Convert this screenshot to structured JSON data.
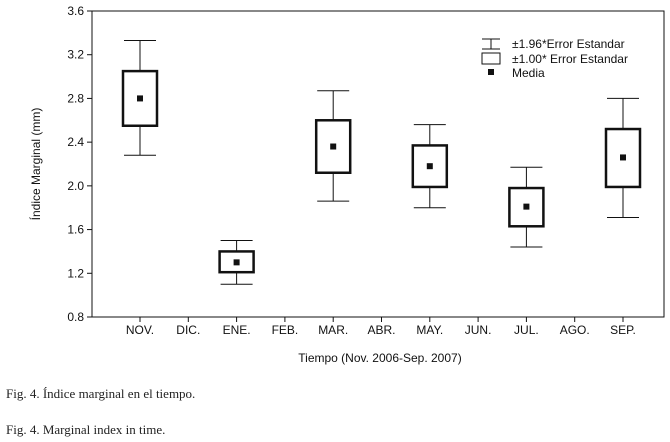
{
  "chart_data": {
    "type": "box",
    "xlabel": "Tiempo (Nov. 2006-Sep. 2007)",
    "ylabel": "Índice Marginal (mm)",
    "ylim": [
      0.8,
      3.6
    ],
    "yticks": [
      "0.8",
      "1.2",
      "1.6",
      "2.0",
      "2.4",
      "2.8",
      "3.2",
      "3.6"
    ],
    "categories": [
      "NOV.",
      "DIC.",
      "ENE.",
      "FEB.",
      "MAR.",
      "ABR.",
      "MAY.",
      "JUN.",
      "JUL.",
      "AGO.",
      "SEP."
    ],
    "legend": {
      "position": "top-right",
      "whisker_label": "±1.96*Error Estandar",
      "box_label": "±1.00* Error Estandar",
      "mean_label": "Media"
    },
    "series": [
      {
        "category": "NOV.",
        "mean": 2.8,
        "box_low": 2.55,
        "box_high": 3.05,
        "whisker_low": 2.28,
        "whisker_high": 3.33
      },
      {
        "category": "ENE.",
        "mean": 1.3,
        "box_low": 1.21,
        "box_high": 1.4,
        "whisker_low": 1.1,
        "whisker_high": 1.5
      },
      {
        "category": "MAR.",
        "mean": 2.36,
        "box_low": 2.12,
        "box_high": 2.6,
        "whisker_low": 1.86,
        "whisker_high": 2.87
      },
      {
        "category": "MAY.",
        "mean": 2.18,
        "box_low": 1.99,
        "box_high": 2.37,
        "whisker_low": 1.8,
        "whisker_high": 2.56
      },
      {
        "category": "JUL.",
        "mean": 1.81,
        "box_low": 1.63,
        "box_high": 1.98,
        "whisker_low": 1.44,
        "whisker_high": 2.17
      },
      {
        "category": "SEP.",
        "mean": 2.26,
        "box_low": 1.99,
        "box_high": 2.52,
        "whisker_low": 1.71,
        "whisker_high": 2.8
      }
    ]
  },
  "captions": {
    "spanish": "Fig. 4. Índice marginal en el tiempo.",
    "english": "Fig. 4. Marginal index in time."
  }
}
